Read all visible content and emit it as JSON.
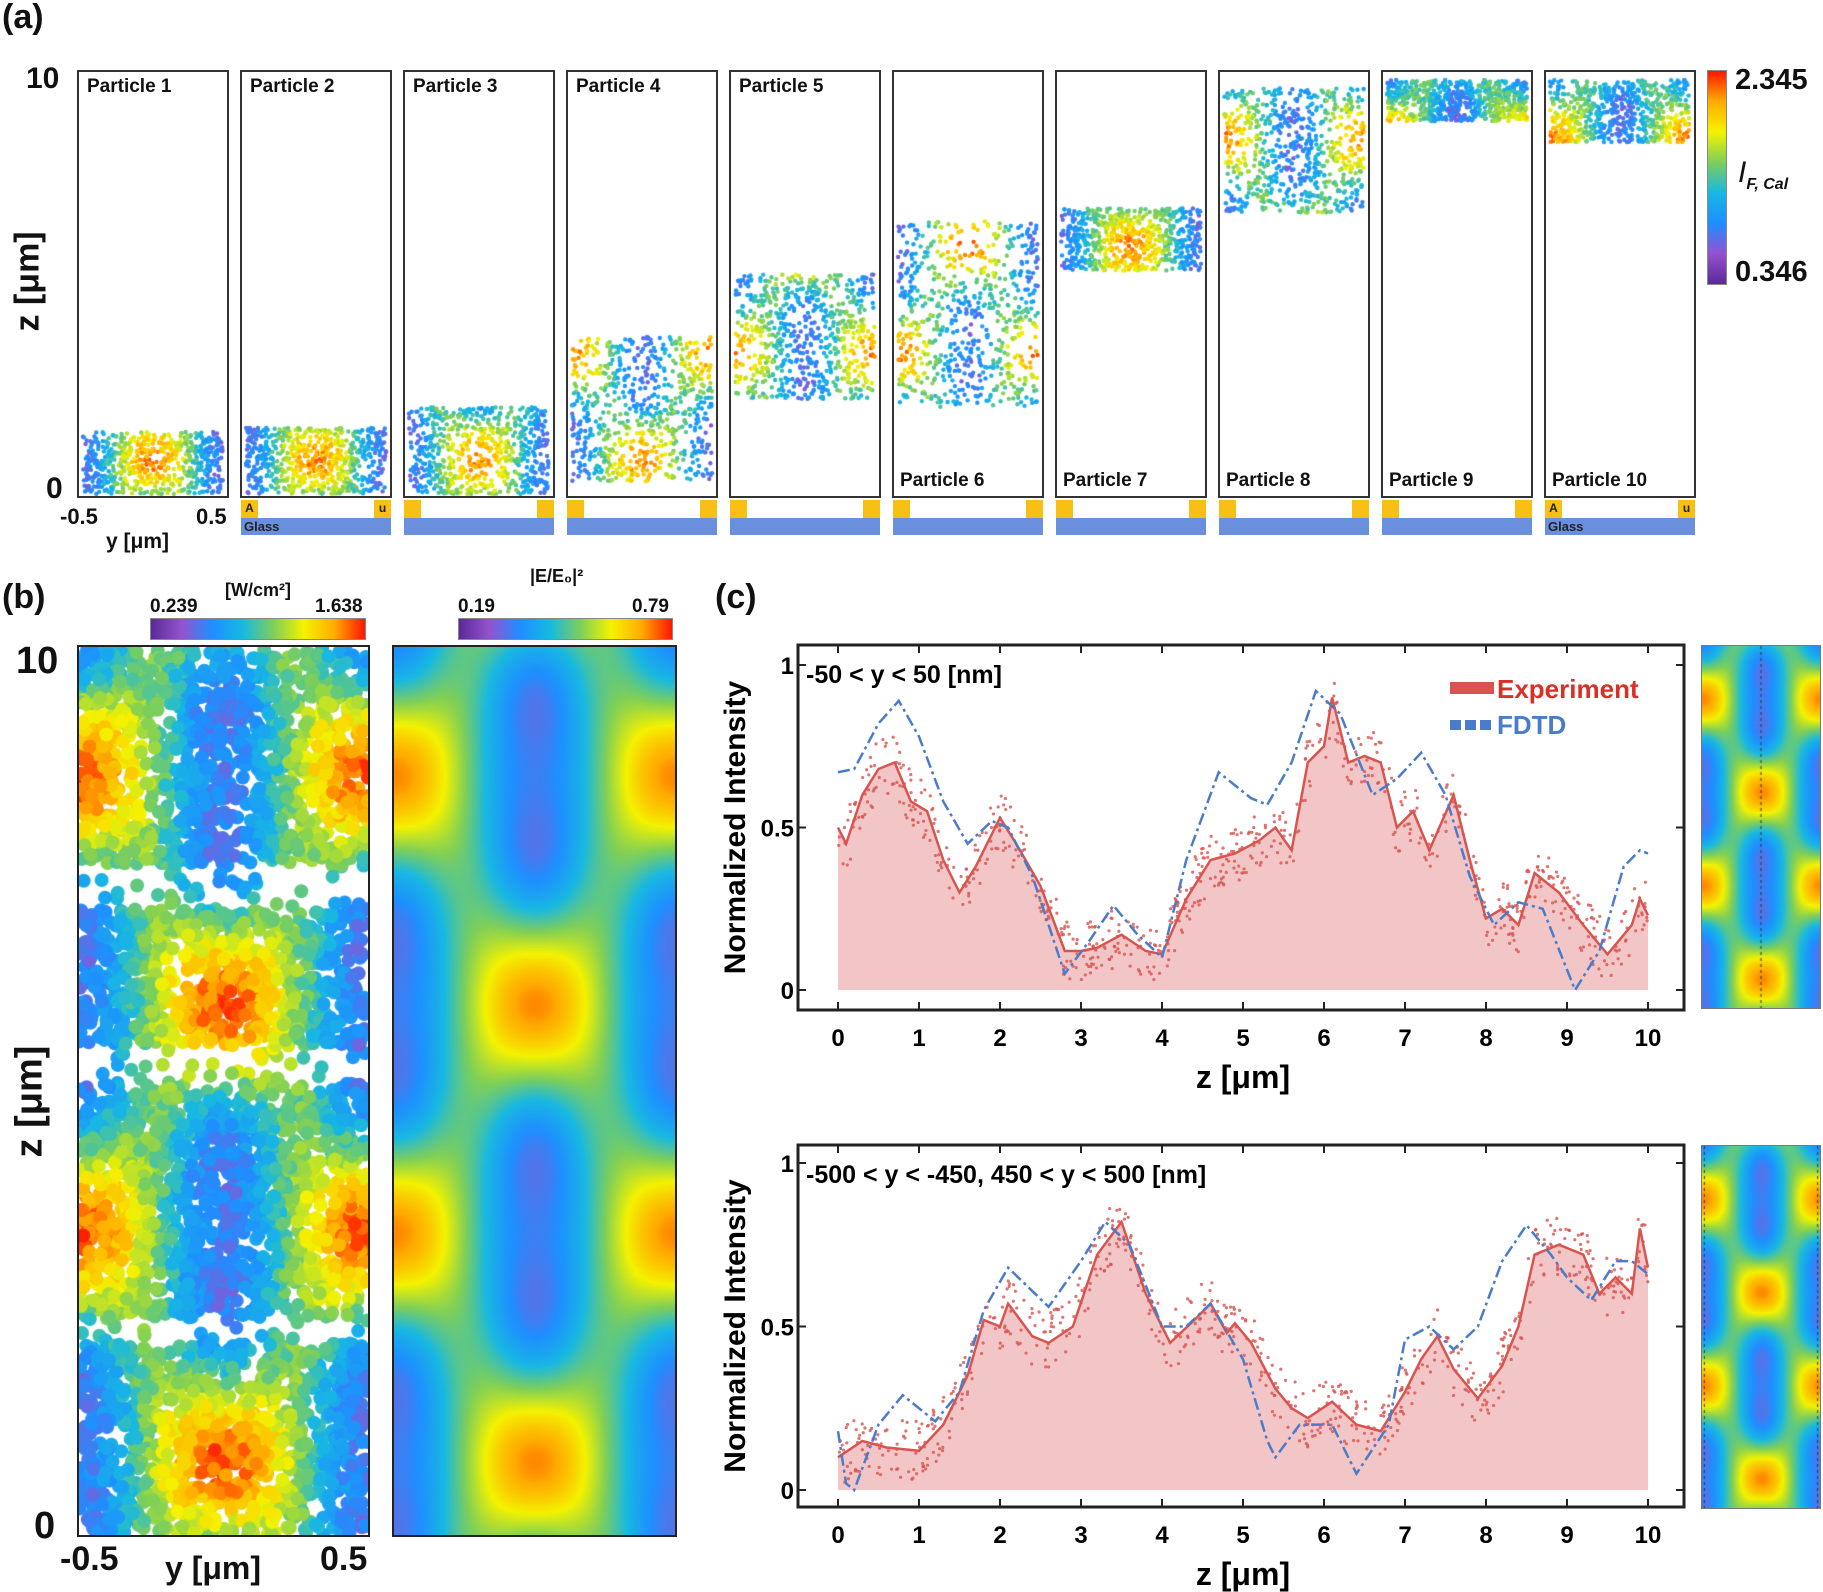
{
  "panel_a": {
    "label": "(a)",
    "z_axis_label": "z [μm]",
    "z_ticks": [
      "10",
      "0"
    ],
    "y_axis_label": "y [μm]",
    "y_ticks": [
      "-0.5",
      "0.5"
    ],
    "particles": [
      {
        "name": "Particle 1",
        "z_range": [
          0,
          1.5
        ]
      },
      {
        "name": "Particle 2",
        "z_range": [
          0,
          1.6
        ]
      },
      {
        "name": "Particle 3",
        "z_range": [
          0,
          2.1
        ]
      },
      {
        "name": "Particle 4",
        "z_range": [
          0.3,
          3.8
        ]
      },
      {
        "name": "Particle 5",
        "z_range": [
          2.3,
          5.3
        ]
      },
      {
        "name": "Particle 6",
        "z_range": [
          2.1,
          6.6
        ]
      },
      {
        "name": "Particle 7",
        "z_range": [
          5.4,
          6.9
        ]
      },
      {
        "name": "Particle 8",
        "z_range": [
          6.8,
          9.8
        ]
      },
      {
        "name": "Particle 9",
        "z_range": [
          9.0,
          10
        ]
      },
      {
        "name": "Particle 10",
        "z_range": [
          8.5,
          10
        ]
      }
    ],
    "substrate": {
      "left_label": "A",
      "right_label": "u",
      "glass_label": "Glass",
      "gold_color": "#f8bf14",
      "glass_color": "#6a8fdc"
    },
    "colorbar": {
      "max": "2.345",
      "min": "0.346",
      "label_main": "I",
      "label_sub": "F, Cal"
    }
  },
  "panel_b": {
    "label": "(b)",
    "colorbar_left": {
      "unit": "[W/cm²]",
      "min": "0.239",
      "max": "1.638"
    },
    "colorbar_right": {
      "unit": "|E/E₀|²",
      "min": "0.19",
      "max": "0.79"
    },
    "z_axis_label": "z [μm]",
    "z_ticks": [
      "10",
      "0"
    ],
    "y_axis_label": "y [μm]",
    "y_ticks": [
      "-0.5",
      "0.5"
    ]
  },
  "panel_c": {
    "label": "(c)"
  },
  "colormap": [
    "#5a2a98",
    "#9452cf",
    "#1e8fff",
    "#18b8e2",
    "#7fcf58",
    "#f4f200",
    "#ffab00",
    "#ff1500"
  ],
  "chart_data": [
    {
      "type": "line",
      "annotation": "-50 < y < 50 [nm]",
      "xlabel": "z [μm]",
      "ylabel": "Normalized Intensity",
      "xlim": [
        0,
        10
      ],
      "ylim": [
        0,
        1
      ],
      "xticks": [
        "0",
        "1",
        "2",
        "3",
        "4",
        "5",
        "6",
        "7",
        "8",
        "9",
        "10"
      ],
      "yticks": [
        "0",
        "0.5",
        "1"
      ],
      "legend_position": "top-right",
      "series": [
        {
          "name": "Experiment",
          "color": "#d9534f",
          "style": "solid-filled",
          "x": [
            0,
            0.1,
            0.3,
            0.5,
            0.7,
            0.9,
            1.1,
            1.3,
            1.5,
            1.7,
            2.0,
            2.2,
            2.5,
            2.8,
            3.0,
            3.2,
            3.5,
            3.8,
            4.0,
            4.3,
            4.6,
            4.9,
            5.2,
            5.4,
            5.6,
            5.8,
            6.0,
            6.1,
            6.3,
            6.5,
            6.7,
            6.9,
            7.1,
            7.3,
            7.6,
            7.8,
            8.0,
            8.2,
            8.4,
            8.6,
            8.9,
            9.2,
            9.5,
            9.8,
            9.9,
            10
          ],
          "y": [
            0.5,
            0.45,
            0.6,
            0.68,
            0.7,
            0.58,
            0.55,
            0.4,
            0.3,
            0.38,
            0.53,
            0.45,
            0.32,
            0.12,
            0.12,
            0.13,
            0.17,
            0.12,
            0.11,
            0.28,
            0.4,
            0.42,
            0.46,
            0.5,
            0.43,
            0.7,
            0.75,
            0.9,
            0.7,
            0.72,
            0.7,
            0.5,
            0.55,
            0.43,
            0.6,
            0.4,
            0.22,
            0.25,
            0.2,
            0.36,
            0.3,
            0.2,
            0.11,
            0.2,
            0.28,
            0.23
          ]
        },
        {
          "name": "FDTD",
          "color": "#4a7cc9",
          "style": "dash-dot",
          "x": [
            0,
            0.2,
            0.5,
            0.75,
            1.0,
            1.3,
            1.6,
            1.9,
            2.1,
            2.4,
            2.8,
            3.1,
            3.4,
            3.7,
            4.0,
            4.3,
            4.7,
            5.1,
            5.3,
            5.6,
            5.9,
            6.2,
            6.6,
            6.9,
            7.2,
            7.5,
            7.8,
            8.1,
            8.4,
            8.7,
            9.1,
            9.4,
            9.7,
            9.9,
            10
          ],
          "y": [
            0.67,
            0.68,
            0.82,
            0.89,
            0.78,
            0.58,
            0.45,
            0.52,
            0.5,
            0.35,
            0.05,
            0.15,
            0.26,
            0.17,
            0.1,
            0.4,
            0.67,
            0.59,
            0.57,
            0.7,
            0.92,
            0.85,
            0.6,
            0.65,
            0.73,
            0.6,
            0.35,
            0.2,
            0.27,
            0.25,
            0.0,
            0.12,
            0.38,
            0.43,
            0.42
          ]
        }
      ]
    },
    {
      "type": "line",
      "annotation": "-500 < y < -450, 450 < y < 500 [nm]",
      "xlabel": "z [μm]",
      "ylabel": "Normalized Intensity",
      "xlim": [
        0,
        10
      ],
      "ylim": [
        0,
        1
      ],
      "xticks": [
        "0",
        "1",
        "2",
        "3",
        "4",
        "5",
        "6",
        "7",
        "8",
        "9",
        "10"
      ],
      "yticks": [
        "0",
        "0.5",
        "1"
      ],
      "series": [
        {
          "name": "Experiment",
          "color": "#d9534f",
          "style": "solid-filled",
          "x": [
            0,
            0.3,
            0.6,
            1.0,
            1.3,
            1.6,
            1.8,
            2.0,
            2.1,
            2.4,
            2.6,
            2.9,
            3.2,
            3.5,
            3.8,
            4.1,
            4.4,
            4.6,
            4.8,
            4.9,
            5.1,
            5.4,
            5.6,
            5.8,
            6.1,
            6.4,
            6.7,
            7.0,
            7.2,
            7.4,
            7.6,
            7.9,
            8.2,
            8.4,
            8.6,
            8.9,
            9.2,
            9.4,
            9.6,
            9.8,
            9.9,
            10
          ],
          "y": [
            0.1,
            0.15,
            0.13,
            0.12,
            0.2,
            0.35,
            0.52,
            0.5,
            0.57,
            0.47,
            0.45,
            0.5,
            0.72,
            0.82,
            0.6,
            0.45,
            0.52,
            0.57,
            0.48,
            0.51,
            0.45,
            0.31,
            0.25,
            0.22,
            0.27,
            0.2,
            0.18,
            0.3,
            0.4,
            0.47,
            0.37,
            0.28,
            0.38,
            0.5,
            0.72,
            0.75,
            0.72,
            0.6,
            0.65,
            0.6,
            0.8,
            0.68
          ]
        },
        {
          "name": "FDTD",
          "color": "#4a7cc9",
          "style": "dash-dot",
          "x": [
            0,
            0.1,
            0.2,
            0.5,
            0.8,
            1.2,
            1.5,
            1.8,
            2.1,
            2.6,
            3.0,
            3.3,
            3.6,
            4.0,
            4.3,
            4.6,
            5.0,
            5.3,
            5.4,
            5.7,
            6.1,
            6.4,
            6.8,
            7.0,
            7.3,
            7.6,
            7.9,
            8.2,
            8.5,
            8.8,
            9.0,
            9.3,
            9.6,
            9.8,
            10
          ],
          "y": [
            0.18,
            0.02,
            0.0,
            0.2,
            0.29,
            0.21,
            0.3,
            0.55,
            0.68,
            0.56,
            0.7,
            0.82,
            0.75,
            0.5,
            0.5,
            0.57,
            0.4,
            0.15,
            0.1,
            0.2,
            0.2,
            0.05,
            0.2,
            0.46,
            0.5,
            0.43,
            0.5,
            0.7,
            0.81,
            0.72,
            0.65,
            0.58,
            0.7,
            0.7,
            0.66
          ]
        }
      ]
    }
  ]
}
